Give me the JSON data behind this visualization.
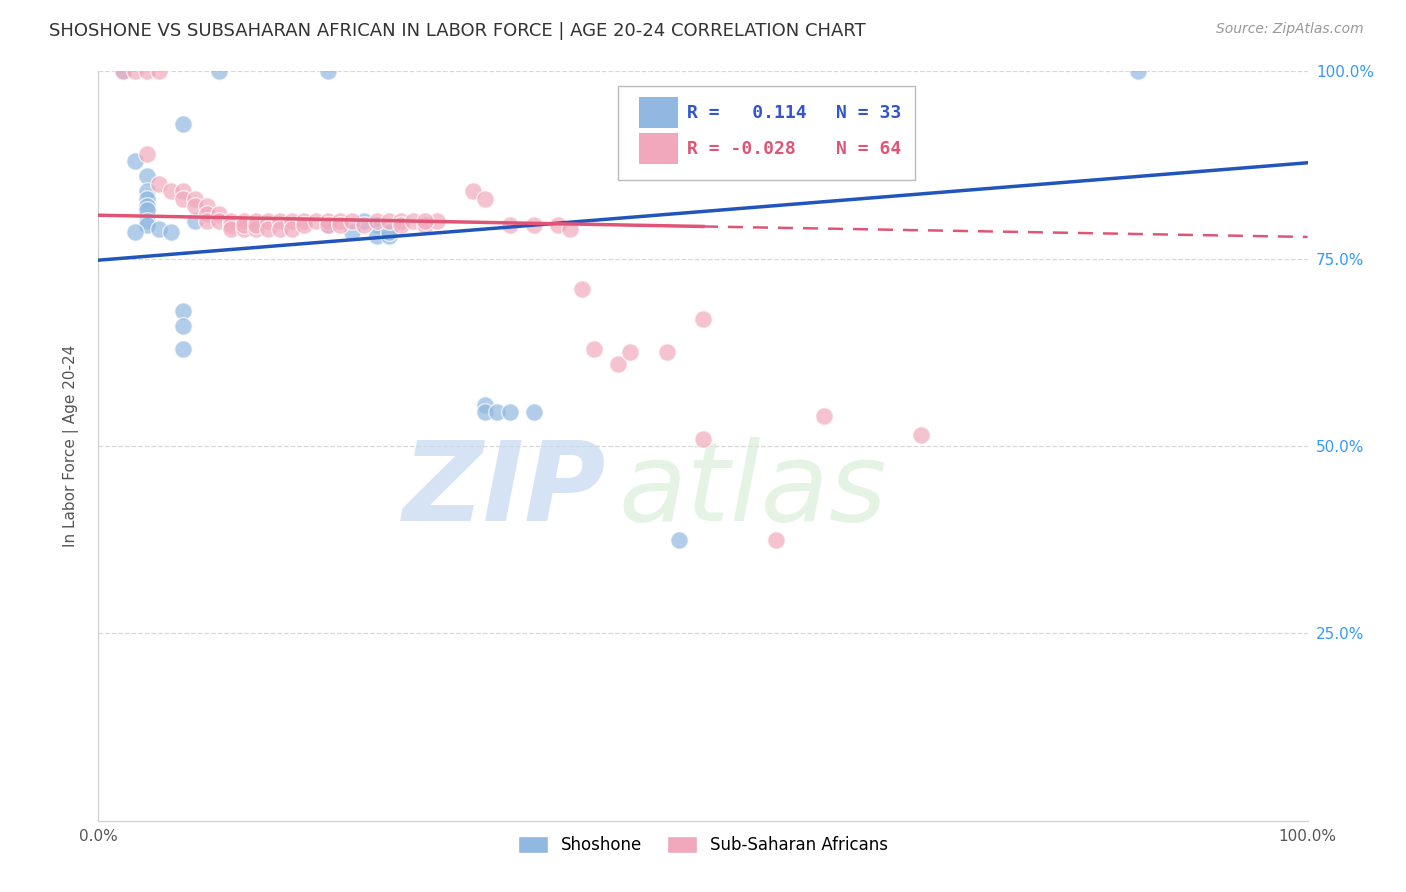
{
  "title": "SHOSHONE VS SUBSAHARAN AFRICAN IN LABOR FORCE | AGE 20-24 CORRELATION CHART",
  "source": "Source: ZipAtlas.com",
  "ylabel": "In Labor Force | Age 20-24",
  "xlim": [
    0.0,
    1.0
  ],
  "ylim": [
    0.0,
    1.0
  ],
  "background_color": "#ffffff",
  "grid_color": "#d8d8d8",
  "shoshone_color": "#90b8e0",
  "subsaharan_color": "#f2a8bc",
  "shoshone_line_color": "#2255bb",
  "subsaharan_line_color": "#e05575",
  "legend_r_shoshone": "R =   0.114",
  "legend_n_shoshone": "N = 33",
  "legend_r_subsaharan": "R = -0.028",
  "legend_n_subsaharan": "N = 64",
  "watermark_zip": "ZIP",
  "watermark_atlas": "atlas",
  "shoshone_points": [
    [
      0.02,
      1.0
    ],
    [
      0.07,
      0.93
    ],
    [
      0.03,
      0.88
    ],
    [
      0.04,
      0.86
    ],
    [
      0.04,
      0.84
    ],
    [
      0.04,
      0.83
    ],
    [
      0.04,
      0.82
    ],
    [
      0.04,
      0.815
    ],
    [
      0.04,
      0.8
    ],
    [
      0.04,
      0.795
    ],
    [
      0.03,
      0.785
    ],
    [
      0.05,
      0.79
    ],
    [
      0.06,
      0.785
    ],
    [
      0.08,
      0.8
    ],
    [
      0.1,
      1.0
    ],
    [
      0.19,
      1.0
    ],
    [
      0.19,
      0.795
    ],
    [
      0.21,
      0.785
    ],
    [
      0.23,
      0.795
    ],
    [
      0.07,
      0.68
    ],
    [
      0.07,
      0.66
    ],
    [
      0.07,
      0.63
    ],
    [
      0.22,
      0.8
    ],
    [
      0.23,
      0.78
    ],
    [
      0.24,
      0.78
    ],
    [
      0.24,
      0.785
    ],
    [
      0.32,
      0.555
    ],
    [
      0.32,
      0.545
    ],
    [
      0.33,
      0.545
    ],
    [
      0.34,
      0.545
    ],
    [
      0.36,
      0.545
    ],
    [
      0.48,
      0.375
    ],
    [
      0.86,
      1.0
    ]
  ],
  "subsaharan_points": [
    [
      0.02,
      1.0
    ],
    [
      0.03,
      1.0
    ],
    [
      0.04,
      1.0
    ],
    [
      0.05,
      1.0
    ],
    [
      0.04,
      0.89
    ],
    [
      0.05,
      0.85
    ],
    [
      0.06,
      0.84
    ],
    [
      0.07,
      0.84
    ],
    [
      0.07,
      0.83
    ],
    [
      0.08,
      0.83
    ],
    [
      0.08,
      0.82
    ],
    [
      0.09,
      0.82
    ],
    [
      0.09,
      0.81
    ],
    [
      0.09,
      0.8
    ],
    [
      0.1,
      0.81
    ],
    [
      0.1,
      0.8
    ],
    [
      0.11,
      0.8
    ],
    [
      0.11,
      0.795
    ],
    [
      0.11,
      0.79
    ],
    [
      0.12,
      0.79
    ],
    [
      0.12,
      0.8
    ],
    [
      0.12,
      0.795
    ],
    [
      0.13,
      0.8
    ],
    [
      0.13,
      0.79
    ],
    [
      0.13,
      0.795
    ],
    [
      0.14,
      0.8
    ],
    [
      0.14,
      0.79
    ],
    [
      0.15,
      0.8
    ],
    [
      0.15,
      0.79
    ],
    [
      0.16,
      0.8
    ],
    [
      0.16,
      0.79
    ],
    [
      0.17,
      0.8
    ],
    [
      0.17,
      0.795
    ],
    [
      0.18,
      0.8
    ],
    [
      0.19,
      0.8
    ],
    [
      0.19,
      0.795
    ],
    [
      0.2,
      0.8
    ],
    [
      0.2,
      0.795
    ],
    [
      0.21,
      0.8
    ],
    [
      0.22,
      0.795
    ],
    [
      0.23,
      0.8
    ],
    [
      0.24,
      0.8
    ],
    [
      0.25,
      0.8
    ],
    [
      0.25,
      0.795
    ],
    [
      0.26,
      0.8
    ],
    [
      0.27,
      0.795
    ],
    [
      0.28,
      0.8
    ],
    [
      0.27,
      0.8
    ],
    [
      0.31,
      0.84
    ],
    [
      0.32,
      0.83
    ],
    [
      0.34,
      0.795
    ],
    [
      0.36,
      0.795
    ],
    [
      0.38,
      0.795
    ],
    [
      0.39,
      0.79
    ],
    [
      0.4,
      0.71
    ],
    [
      0.41,
      0.63
    ],
    [
      0.43,
      0.61
    ],
    [
      0.44,
      0.625
    ],
    [
      0.47,
      0.625
    ],
    [
      0.5,
      0.67
    ],
    [
      0.5,
      0.51
    ],
    [
      0.56,
      0.375
    ],
    [
      0.6,
      0.54
    ],
    [
      0.68,
      0.515
    ]
  ],
  "shoshone_trendline": [
    [
      0.0,
      0.748
    ],
    [
      1.0,
      0.878
    ]
  ],
  "subsaharan_trendline_solid": [
    [
      0.0,
      0.808
    ],
    [
      0.5,
      0.793
    ]
  ],
  "subsaharan_trendline_dashed": [
    [
      0.5,
      0.793
    ],
    [
      1.0,
      0.779
    ]
  ]
}
